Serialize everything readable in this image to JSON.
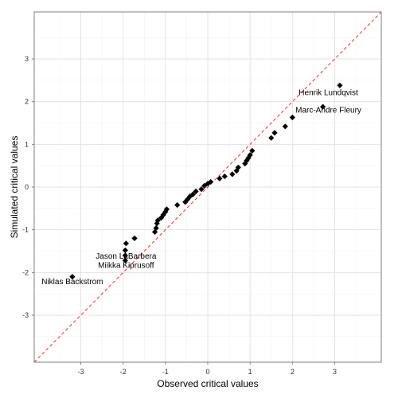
{
  "chart_data": {
    "type": "scatter",
    "xlabel": "Observed critical values",
    "ylabel": "Simulated critical values",
    "xlim": [
      -4.1,
      4.1
    ],
    "ylim": [
      -4.1,
      4.1
    ],
    "x_ticks": [
      -3,
      -2,
      -1,
      0,
      1,
      2,
      3
    ],
    "y_ticks": [
      -3,
      -2,
      -1,
      0,
      1,
      2,
      3
    ],
    "grid": true,
    "reference_line": {
      "slope": 1,
      "intercept": 0,
      "style": "dashed",
      "color": "#e0302a"
    },
    "point_color": "#000000",
    "points": [
      {
        "x": -3.2,
        "y": -2.1
      },
      {
        "x": -1.95,
        "y": -1.72
      },
      {
        "x": -1.95,
        "y": -1.6
      },
      {
        "x": -1.95,
        "y": -1.48
      },
      {
        "x": -1.93,
        "y": -1.32
      },
      {
        "x": -1.73,
        "y": -1.2
      },
      {
        "x": -1.25,
        "y": -1.05
      },
      {
        "x": -1.22,
        "y": -0.96
      },
      {
        "x": -1.2,
        "y": -0.85
      },
      {
        "x": -1.18,
        "y": -0.78
      },
      {
        "x": -1.1,
        "y": -0.72
      },
      {
        "x": -1.05,
        "y": -0.65
      },
      {
        "x": -1.0,
        "y": -0.58
      },
      {
        "x": -0.97,
        "y": -0.52
      },
      {
        "x": -0.72,
        "y": -0.42
      },
      {
        "x": -0.53,
        "y": -0.35
      },
      {
        "x": -0.48,
        "y": -0.29
      },
      {
        "x": -0.42,
        "y": -0.22
      },
      {
        "x": -0.35,
        "y": -0.17
      },
      {
        "x": -0.28,
        "y": -0.1
      },
      {
        "x": -0.15,
        "y": -0.05
      },
      {
        "x": -0.08,
        "y": 0.03
      },
      {
        "x": 0.0,
        "y": 0.08
      },
      {
        "x": 0.07,
        "y": 0.12
      },
      {
        "x": 0.28,
        "y": 0.2
      },
      {
        "x": 0.4,
        "y": 0.25
      },
      {
        "x": 0.58,
        "y": 0.3
      },
      {
        "x": 0.68,
        "y": 0.38
      },
      {
        "x": 0.72,
        "y": 0.46
      },
      {
        "x": 0.88,
        "y": 0.55
      },
      {
        "x": 0.92,
        "y": 0.62
      },
      {
        "x": 0.96,
        "y": 0.68
      },
      {
        "x": 1.0,
        "y": 0.75
      },
      {
        "x": 1.05,
        "y": 0.85
      },
      {
        "x": 1.5,
        "y": 1.15
      },
      {
        "x": 1.58,
        "y": 1.27
      },
      {
        "x": 1.83,
        "y": 1.42
      },
      {
        "x": 2.0,
        "y": 1.63,
        "label": "Marc-Andre Fleury"
      },
      {
        "x": 2.72,
        "y": 1.88
      },
      {
        "x": 3.12,
        "y": 2.38,
        "label": "Henrik Lundqvist"
      }
    ],
    "annotations": [
      {
        "text": "Henrik Lundqvist",
        "x": 2.85,
        "y": 2.2
      },
      {
        "text": "Marc-Andre Fleury",
        "x": 2.85,
        "y": 1.79
      },
      {
        "text": "Jason LaBarbera",
        "x": -1.93,
        "y": -1.63
      },
      {
        "text": "Miikka Kiprusoff",
        "x": -1.93,
        "y": -1.84
      },
      {
        "text": "Niklas Backstrom",
        "x": -3.2,
        "y": -2.22
      }
    ]
  }
}
